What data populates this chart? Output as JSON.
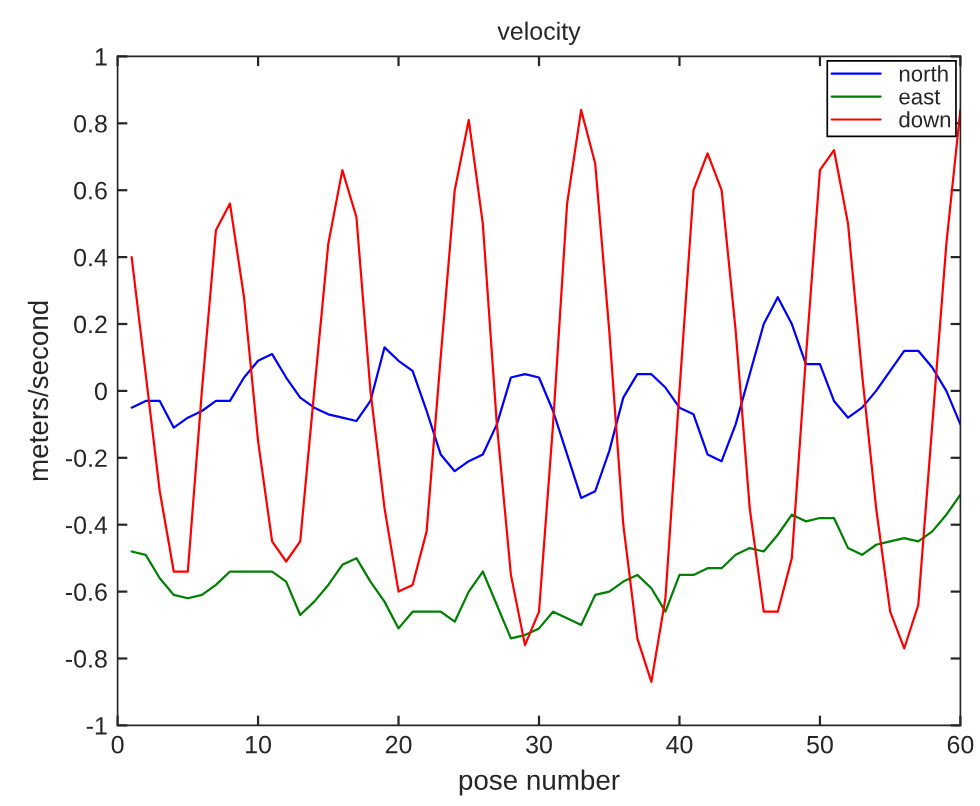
{
  "chart_data": {
    "type": "line",
    "title": "velocity",
    "xlabel": "pose number",
    "ylabel": "meters/second",
    "x": [
      1,
      2,
      3,
      4,
      5,
      6,
      7,
      8,
      9,
      10,
      11,
      12,
      13,
      14,
      15,
      16,
      17,
      18,
      19,
      20,
      21,
      22,
      23,
      24,
      25,
      26,
      27,
      28,
      29,
      30,
      31,
      32,
      33,
      34,
      35,
      36,
      37,
      38,
      39,
      40,
      41,
      42,
      43,
      44,
      45,
      46,
      47,
      48,
      49,
      50,
      51,
      52,
      53,
      54,
      55,
      56,
      57,
      58,
      59,
      60
    ],
    "series": [
      {
        "name": "north",
        "color": "#0000ff",
        "values": [
          -0.05,
          -0.03,
          -0.03,
          -0.11,
          -0.08,
          -0.06,
          -0.03,
          -0.03,
          0.04,
          0.09,
          0.11,
          0.04,
          -0.02,
          -0.05,
          -0.07,
          -0.08,
          -0.09,
          -0.03,
          0.13,
          0.09,
          0.06,
          -0.06,
          -0.19,
          -0.24,
          -0.21,
          -0.19,
          -0.1,
          0.04,
          0.05,
          0.04,
          -0.06,
          -0.19,
          -0.32,
          -0.3,
          -0.18,
          -0.02,
          0.05,
          0.05,
          0.01,
          -0.05,
          -0.07,
          -0.19,
          -0.21,
          -0.1,
          0.05,
          0.2,
          0.28,
          0.2,
          0.08,
          0.08,
          -0.03,
          -0.08,
          -0.05,
          0.0,
          0.06,
          0.12,
          0.12,
          0.07,
          0.0,
          -0.1
        ]
      },
      {
        "name": "east",
        "color": "#008000",
        "values": [
          -0.48,
          -0.49,
          -0.56,
          -0.61,
          -0.62,
          -0.61,
          -0.58,
          -0.54,
          -0.54,
          -0.54,
          -0.54,
          -0.57,
          -0.67,
          -0.63,
          -0.58,
          -0.52,
          -0.5,
          -0.57,
          -0.63,
          -0.71,
          -0.66,
          -0.66,
          -0.66,
          -0.69,
          -0.6,
          -0.54,
          -0.64,
          -0.74,
          -0.73,
          -0.71,
          -0.66,
          -0.68,
          -0.7,
          -0.61,
          -0.6,
          -0.57,
          -0.55,
          -0.59,
          -0.66,
          -0.55,
          -0.55,
          -0.53,
          -0.53,
          -0.49,
          -0.47,
          -0.48,
          -0.43,
          -0.37,
          -0.39,
          -0.38,
          -0.38,
          -0.47,
          -0.49,
          -0.46,
          -0.45,
          -0.44,
          -0.45,
          -0.42,
          -0.37,
          -0.31
        ]
      },
      {
        "name": "down",
        "color": "#ff0000",
        "values": [
          0.4,
          0.05,
          -0.3,
          -0.54,
          -0.54,
          0.0,
          0.48,
          0.56,
          0.28,
          -0.15,
          -0.45,
          -0.51,
          -0.45,
          0.0,
          0.44,
          0.66,
          0.52,
          0.0,
          -0.35,
          -0.6,
          -0.58,
          -0.42,
          0.1,
          0.6,
          0.81,
          0.5,
          -0.1,
          -0.55,
          -0.76,
          -0.66,
          -0.1,
          0.56,
          0.84,
          0.68,
          0.18,
          -0.4,
          -0.74,
          -0.87,
          -0.62,
          0.0,
          0.6,
          0.71,
          0.6,
          0.18,
          -0.35,
          -0.66,
          -0.66,
          -0.5,
          0.1,
          0.66,
          0.72,
          0.5,
          0.05,
          -0.35,
          -0.66,
          -0.77,
          -0.64,
          -0.1,
          0.44,
          0.84
        ]
      }
    ],
    "xlim": [
      0,
      60
    ],
    "xticks": [
      0,
      10,
      20,
      30,
      40,
      50,
      60
    ],
    "ylim": [
      -1,
      1
    ],
    "yticks": [
      -1,
      -0.8,
      -0.6,
      -0.4,
      -0.2,
      0,
      0.2,
      0.4,
      0.6,
      0.8,
      1
    ],
    "legend": "top right",
    "grid": false
  }
}
